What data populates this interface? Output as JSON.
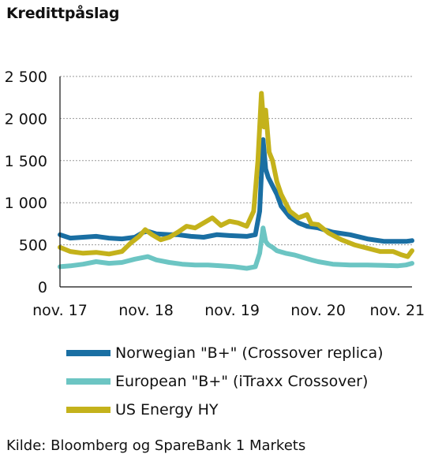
{
  "title": "Kredittpåslag",
  "source": "Kilde: Bloomberg og SpareBank 1 Markets",
  "chart_data": {
    "type": "line",
    "ylim": [
      0,
      2500
    ],
    "yticks": [
      {
        "value": 0,
        "label": "0"
      },
      {
        "value": 500,
        "label": "500"
      },
      {
        "value": 1000,
        "label": "1 000"
      },
      {
        "value": 1500,
        "label": "1 500"
      },
      {
        "value": 2000,
        "label": "2 000"
      },
      {
        "value": 2500,
        "label": "2 500"
      }
    ],
    "xlim": [
      2017.83,
      2021.92
    ],
    "xticks": [
      {
        "value": 2017.83,
        "label": "nov. 17"
      },
      {
        "value": 2018.83,
        "label": "nov. 18"
      },
      {
        "value": 2019.83,
        "label": "nov. 19"
      },
      {
        "value": 2020.83,
        "label": "nov. 20"
      },
      {
        "value": 2021.83,
        "label": "nov. 21"
      }
    ],
    "grid": "horizontal dashed",
    "legend_position": "bottom",
    "series": [
      {
        "name": "Norwegian \"B+\" (Crossover replica)",
        "color": "#1a6fa3",
        "x": [
          2017.83,
          2017.95,
          2018.1,
          2018.25,
          2018.4,
          2018.55,
          2018.7,
          2018.8,
          2018.85,
          2018.95,
          2019.1,
          2019.2,
          2019.35,
          2019.5,
          2019.65,
          2019.8,
          2020.0,
          2020.1,
          2020.15,
          2020.19,
          2020.22,
          2020.25,
          2020.3,
          2020.35,
          2020.4,
          2020.5,
          2020.6,
          2020.7,
          2020.83,
          2021.0,
          2021.2,
          2021.4,
          2021.6,
          2021.75,
          2021.85,
          2021.92
        ],
        "y": [
          620,
          580,
          590,
          600,
          580,
          570,
          590,
          650,
          660,
          630,
          620,
          620,
          600,
          590,
          620,
          610,
          600,
          620,
          900,
          1750,
          1400,
          1300,
          1200,
          1100,
          960,
          830,
          760,
          720,
          700,
          650,
          620,
          570,
          540,
          540,
          540,
          550
        ]
      },
      {
        "name": "European \"B+\" (iTraxx Crossover)",
        "color": "#6cc5c3",
        "x": [
          2017.83,
          2017.95,
          2018.1,
          2018.25,
          2018.4,
          2018.55,
          2018.7,
          2018.85,
          2018.95,
          2019.1,
          2019.25,
          2019.4,
          2019.55,
          2019.7,
          2019.85,
          2020.0,
          2020.1,
          2020.15,
          2020.19,
          2020.22,
          2020.25,
          2020.3,
          2020.35,
          2020.45,
          2020.55,
          2020.65,
          2020.75,
          2020.83,
          2021.0,
          2021.2,
          2021.4,
          2021.6,
          2021.75,
          2021.85,
          2021.92
        ],
        "y": [
          240,
          250,
          270,
          300,
          280,
          290,
          330,
          360,
          320,
          290,
          270,
          260,
          260,
          250,
          240,
          220,
          240,
          400,
          700,
          540,
          500,
          470,
          430,
          400,
          380,
          350,
          320,
          300,
          270,
          260,
          260,
          255,
          250,
          260,
          280
        ]
      },
      {
        "name": "US Energy HY",
        "color": "#c4b21b",
        "x": [
          2017.83,
          2017.95,
          2018.1,
          2018.25,
          2018.4,
          2018.55,
          2018.65,
          2018.75,
          2018.82,
          2018.9,
          2019.0,
          2019.1,
          2019.2,
          2019.3,
          2019.4,
          2019.5,
          2019.6,
          2019.7,
          2019.8,
          2019.9,
          2020.0,
          2020.08,
          2020.13,
          2020.17,
          2020.2,
          2020.22,
          2020.26,
          2020.3,
          2020.35,
          2020.4,
          2020.45,
          2020.5,
          2020.6,
          2020.7,
          2020.75,
          2020.83,
          2020.95,
          2021.1,
          2021.25,
          2021.4,
          2021.55,
          2021.7,
          2021.8,
          2021.87,
          2021.92
        ],
        "y": [
          470,
          420,
          400,
          410,
          390,
          420,
          520,
          600,
          680,
          620,
          560,
          590,
          650,
          720,
          700,
          760,
          820,
          730,
          780,
          760,
          720,
          900,
          1500,
          2300,
          1900,
          2100,
          1600,
          1500,
          1250,
          1100,
          1000,
          900,
          820,
          860,
          750,
          740,
          640,
          560,
          500,
          460,
          420,
          420,
          380,
          360,
          430
        ]
      }
    ]
  }
}
